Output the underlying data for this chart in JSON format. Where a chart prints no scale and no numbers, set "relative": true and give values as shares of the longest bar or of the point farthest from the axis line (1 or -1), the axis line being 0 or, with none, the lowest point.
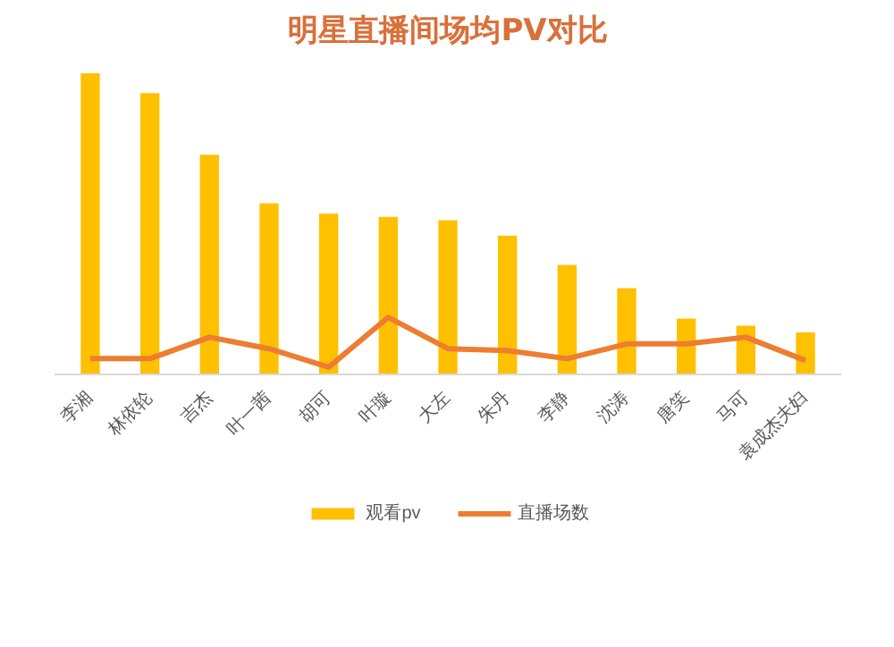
{
  "chart_data": {
    "type": "bar",
    "title": "明星直播间场均PV对比",
    "relative": true,
    "categories": [
      "李湘",
      "林依轮",
      "吉杰",
      "叶一茜",
      "胡可",
      "叶璇",
      "大左",
      "朱丹",
      "李静",
      "沈涛",
      "唐笑",
      "马可",
      "袁成杰夫妇"
    ],
    "series": [
      {
        "name": "观看pv",
        "color": "#ffc000",
        "values": [
          1,
          0.934,
          0.73,
          0.569,
          0.535,
          0.524,
          0.513,
          0.462,
          0.365,
          0.288,
          0.188,
          0.164,
          0.142
        ]
      },
      {
        "name": "直播场数",
        "type": "line",
        "color": "#ed7d31",
        "values": [
          0.055,
          0.055,
          0.126,
          0.088,
          0.027,
          0.192,
          0.088,
          0.082,
          0.055,
          0.104,
          0.104,
          0.126,
          0.049
        ]
      }
    ],
    "grid": false,
    "legend": "bottom"
  }
}
